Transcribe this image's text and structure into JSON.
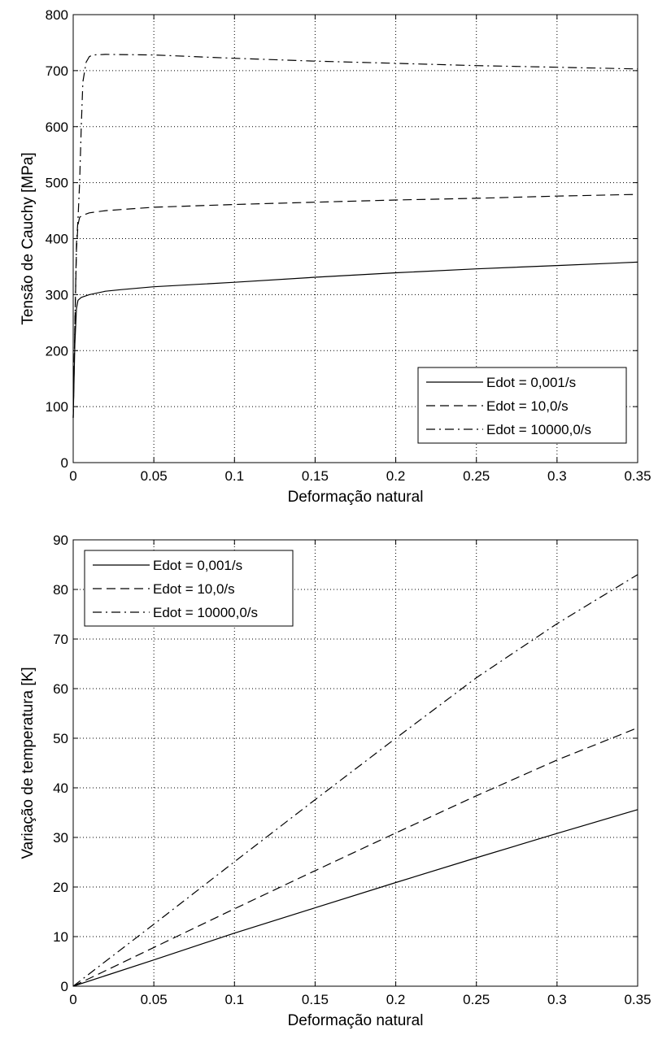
{
  "chart_data": [
    {
      "type": "line",
      "title": "",
      "xlabel": "Deformação natural",
      "ylabel": "Tensão de Cauchy [MPa]",
      "xlim": [
        0,
        0.35
      ],
      "ylim": [
        0,
        800
      ],
      "xticks": [
        0,
        0.05,
        0.1,
        0.15,
        0.2,
        0.25,
        0.3,
        0.35
      ],
      "xtick_labels": [
        "0",
        "0.05",
        "0.1",
        "0.15",
        "0.2",
        "0.25",
        "0.3",
        "0.35"
      ],
      "yticks": [
        0,
        100,
        200,
        300,
        400,
        500,
        600,
        700,
        800
      ],
      "ytick_labels": [
        "0",
        "100",
        "200",
        "300",
        "400",
        "500",
        "600",
        "700",
        "800"
      ],
      "grid": true,
      "legend_position": "bottom-right",
      "series": [
        {
          "name": "Edot = 0,001/s",
          "style": "solid",
          "color": "#000000",
          "x": [
            0,
            0.001,
            0.002,
            0.003,
            0.005,
            0.01,
            0.02,
            0.03,
            0.05,
            0.1,
            0.15,
            0.2,
            0.25,
            0.3,
            0.35
          ],
          "y": [
            80,
            210,
            275,
            290,
            295,
            300,
            306,
            309,
            314,
            322,
            331,
            339,
            346,
            352,
            358
          ]
        },
        {
          "name": "Edot = 10,0/s",
          "style": "dashed",
          "color": "#000000",
          "x": [
            0,
            0.001,
            0.002,
            0.003,
            0.004,
            0.006,
            0.01,
            0.02,
            0.05,
            0.1,
            0.15,
            0.2,
            0.25,
            0.3,
            0.35
          ],
          "y": [
            80,
            240,
            380,
            425,
            438,
            442,
            446,
            450,
            456,
            461,
            465,
            469,
            472,
            476,
            479
          ]
        },
        {
          "name": "Edot = 10000,0/s",
          "style": "dashdot",
          "color": "#000000",
          "x": [
            0,
            0.001,
            0.002,
            0.003,
            0.004,
            0.005,
            0.006,
            0.008,
            0.01,
            0.012,
            0.02,
            0.05,
            0.1,
            0.15,
            0.2,
            0.25,
            0.3,
            0.35
          ],
          "y": [
            80,
            240,
            390,
            435,
            500,
            600,
            680,
            715,
            725,
            728,
            729,
            728,
            722,
            717,
            713,
            709,
            706,
            703
          ]
        }
      ]
    },
    {
      "type": "line",
      "title": "",
      "xlabel": "Deformação natural",
      "ylabel": "Variação de temperatura [K]",
      "xlim": [
        0,
        0.35
      ],
      "ylim": [
        0,
        90
      ],
      "xticks": [
        0,
        0.05,
        0.1,
        0.15,
        0.2,
        0.25,
        0.3,
        0.35
      ],
      "xtick_labels": [
        "0",
        "0.05",
        "0.1",
        "0.15",
        "0.2",
        "0.25",
        "0.3",
        "0.35"
      ],
      "yticks": [
        0,
        10,
        20,
        30,
        40,
        50,
        60,
        70,
        80,
        90
      ],
      "ytick_labels": [
        "0",
        "10",
        "20",
        "30",
        "40",
        "50",
        "60",
        "70",
        "80",
        "90"
      ],
      "grid": true,
      "legend_position": "top-left",
      "series": [
        {
          "name": "Edot = 0,001/s",
          "style": "solid",
          "color": "#000000",
          "x": [
            0,
            0.05,
            0.1,
            0.15,
            0.2,
            0.25,
            0.3,
            0.35
          ],
          "y": [
            0,
            5.3,
            10.7,
            15.8,
            20.9,
            25.9,
            30.8,
            35.6
          ]
        },
        {
          "name": "Edot = 10,0/s",
          "style": "dashed",
          "color": "#000000",
          "x": [
            0,
            0.05,
            0.1,
            0.15,
            0.2,
            0.25,
            0.3,
            0.35
          ],
          "y": [
            0,
            7.8,
            15.6,
            23.3,
            30.9,
            38.4,
            45.6,
            52.1
          ]
        },
        {
          "name": "Edot = 10000,0/s",
          "style": "dashdot",
          "color": "#000000",
          "x": [
            0,
            0.05,
            0.1,
            0.15,
            0.2,
            0.25,
            0.3,
            0.35
          ],
          "y": [
            0,
            12.5,
            25.1,
            37.6,
            50.0,
            62.2,
            73.1,
            83.0
          ]
        }
      ]
    }
  ]
}
